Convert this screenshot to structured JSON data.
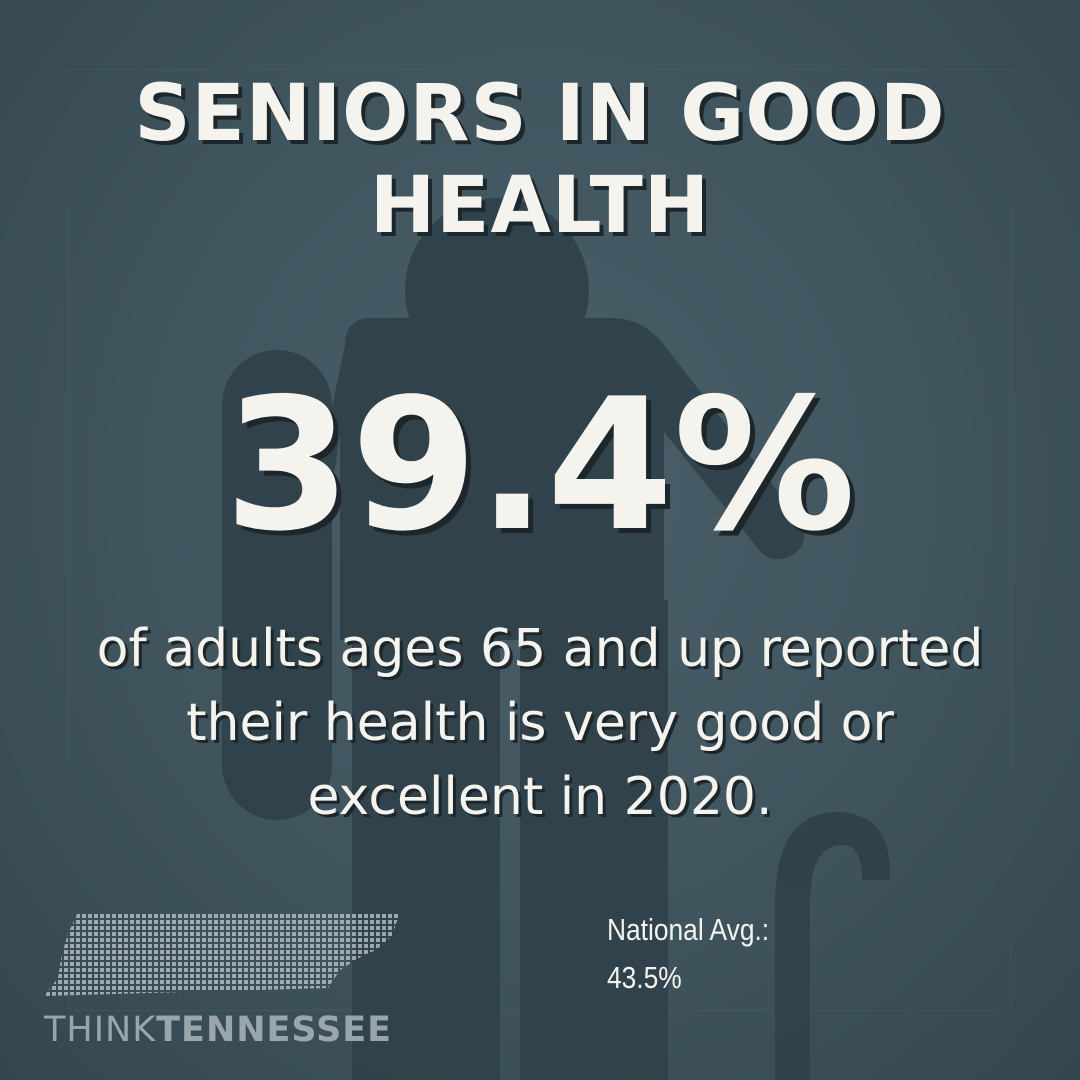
{
  "title_lines": [
    "SENIORS IN GOOD",
    "HEALTH"
  ],
  "stat_value": "39.4%",
  "description_lines": [
    "of adults ages 65 and up reported",
    "their health is very good or",
    "excellent in 2020."
  ],
  "national_label": "National Avg.:",
  "national_value": "43.5%",
  "brand": {
    "part1": "THINK",
    "part2": "TENNESSEE"
  },
  "icons": {
    "background_figure": "senior-with-cane-icon",
    "logo_mark": "tennessee-map-icon"
  },
  "colors": {
    "background": "#3e525c",
    "figure": "#2f4049",
    "text": "#f4f3ee",
    "text_shadow": "#1c262b"
  }
}
